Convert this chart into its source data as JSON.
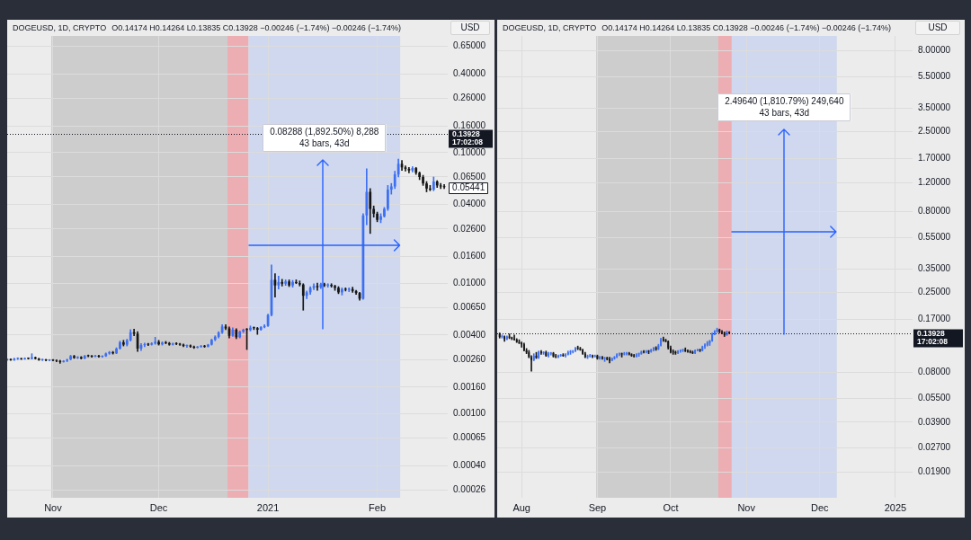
{
  "chart_data": [
    {
      "type": "candlestick",
      "title": "DOGEUSD, 1D, CRYPTO",
      "subtitle": "O0.14174 H0.14264 L0.13835 C0.13928 −0.00246 (−1.74%) −0.00246 (−1.74%)",
      "ylabel": "USD",
      "log": true,
      "grid": true,
      "xlim": [
        "2020-10-19",
        "2021-02-21"
      ],
      "xticks": [
        {
          "value": "2020-11-01",
          "label": "Nov"
        },
        {
          "value": "2020-12-01",
          "label": "Dec"
        },
        {
          "value": "2021-01-01",
          "label": "2021"
        },
        {
          "value": "2021-02-01",
          "label": "Feb"
        }
      ],
      "ylim": [
        0.000227,
        0.782
      ],
      "yticks": [
        {
          "value": 0.65,
          "label": "0.65000"
        },
        {
          "value": 0.4,
          "label": "0.40000"
        },
        {
          "value": 0.26,
          "label": "0.26000"
        },
        {
          "value": 0.16,
          "label": "0.16000"
        },
        {
          "value": 0.1,
          "label": "0.10000"
        },
        {
          "value": 0.065,
          "label": "0.06500"
        },
        {
          "value": 0.04,
          "label": "0.04000"
        },
        {
          "value": 0.026,
          "label": "0.02600"
        },
        {
          "value": 0.016,
          "label": "0.01600"
        },
        {
          "value": 0.01,
          "label": "0.01000"
        },
        {
          "value": 0.0065,
          "label": "0.00650"
        },
        {
          "value": 0.004,
          "label": "0.00400"
        },
        {
          "value": 0.0026,
          "label": "0.00260"
        },
        {
          "value": 0.0016,
          "label": "0.00160"
        },
        {
          "value": 0.001,
          "label": "0.00100"
        },
        {
          "value": 0.00065,
          "label": "0.00065"
        },
        {
          "value": 0.0004,
          "label": "0.00040"
        },
        {
          "value": 0.00026,
          "label": "0.00026"
        }
      ],
      "bands": [
        {
          "axis": "x",
          "from": "2020-10-31T12:00",
          "to": "2020-12-20T12:00",
          "color": "#cdcdcd"
        },
        {
          "axis": "x",
          "from": "2020-12-20T12:00",
          "to": "2020-12-26T12:00",
          "color": "#ecaeb3"
        },
        {
          "axis": "x",
          "from": "2020-12-26T12:00",
          "to": "2021-02-07T12:00",
          "color": "#cfd8ee"
        }
      ],
      "ref_lines": [
        {
          "axis": "y",
          "value": 0.13928,
          "label": "0.13928\n17:02:08",
          "line_style": "dotted",
          "color": "#131722"
        }
      ],
      "annotations": [
        "0.08288 (1,892.50%) 8,288",
        "43 bars, 43d",
        {
          "text": "0.05441",
          "x": "2021-02-20",
          "y": 0.05441
        }
      ],
      "x": [
        "2020-10-19",
        "2020-10-20",
        "2020-10-21",
        "2020-10-22",
        "2020-10-23",
        "2020-10-24",
        "2020-10-25",
        "2020-10-26",
        "2020-10-27",
        "2020-10-28",
        "2020-10-29",
        "2020-10-30",
        "2020-10-31",
        "2020-11-01",
        "2020-11-02",
        "2020-11-03",
        "2020-11-04",
        "2020-11-05",
        "2020-11-06",
        "2020-11-07",
        "2020-11-08",
        "2020-11-09",
        "2020-11-10",
        "2020-11-11",
        "2020-11-12",
        "2020-11-13",
        "2020-11-14",
        "2020-11-15",
        "2020-11-16",
        "2020-11-17",
        "2020-11-18",
        "2020-11-19",
        "2020-11-20",
        "2020-11-21",
        "2020-11-22",
        "2020-11-23",
        "2020-11-24",
        "2020-11-25",
        "2020-11-26",
        "2020-11-27",
        "2020-11-28",
        "2020-11-29",
        "2020-11-30",
        "2020-12-01",
        "2020-12-02",
        "2020-12-03",
        "2020-12-04",
        "2020-12-05",
        "2020-12-06",
        "2020-12-07",
        "2020-12-08",
        "2020-12-09",
        "2020-12-10",
        "2020-12-11",
        "2020-12-12",
        "2020-12-13",
        "2020-12-14",
        "2020-12-15",
        "2020-12-16",
        "2020-12-17",
        "2020-12-18",
        "2020-12-19",
        "2020-12-20",
        "2020-12-21",
        "2020-12-22",
        "2020-12-23",
        "2020-12-24",
        "2020-12-25",
        "2020-12-26",
        "2020-12-27",
        "2020-12-28",
        "2020-12-29",
        "2020-12-30",
        "2020-12-31",
        "2021-01-01",
        "2021-01-02",
        "2021-01-03",
        "2021-01-04",
        "2021-01-05",
        "2021-01-06",
        "2021-01-07",
        "2021-01-08",
        "2021-01-09",
        "2021-01-10",
        "2021-01-11",
        "2021-01-12",
        "2021-01-13",
        "2021-01-14",
        "2021-01-15",
        "2021-01-16",
        "2021-01-17",
        "2021-01-18",
        "2021-01-19",
        "2021-01-20",
        "2021-01-21",
        "2021-01-22",
        "2021-01-23",
        "2021-01-24",
        "2021-01-25",
        "2021-01-26",
        "2021-01-27",
        "2021-01-28",
        "2021-01-29",
        "2021-01-30",
        "2021-01-31",
        "2021-02-01",
        "2021-02-02",
        "2021-02-03",
        "2021-02-04",
        "2021-02-05",
        "2021-02-06",
        "2021-02-07",
        "2021-02-08",
        "2021-02-09",
        "2021-02-10",
        "2021-02-11",
        "2021-02-12",
        "2021-02-13",
        "2021-02-14",
        "2021-02-15",
        "2021-02-16",
        "2021-02-17",
        "2021-02-18",
        "2021-02-19",
        "2021-02-20"
      ],
      "ohlc": [
        [
          0.00258,
          0.00263,
          0.00256,
          0.00261
        ],
        [
          0.00261,
          0.00263,
          0.00256,
          0.00258
        ],
        [
          0.00258,
          0.00266,
          0.00256,
          0.00263
        ],
        [
          0.00263,
          0.00268,
          0.0026,
          0.00264
        ],
        [
          0.00264,
          0.00266,
          0.0026,
          0.00262
        ],
        [
          0.00262,
          0.00268,
          0.00261,
          0.00266
        ],
        [
          0.00266,
          0.00268,
          0.00262,
          0.00264
        ],
        [
          0.00264,
          0.00288,
          0.00262,
          0.0027
        ],
        [
          0.0027,
          0.00272,
          0.00262,
          0.00264
        ],
        [
          0.00264,
          0.00266,
          0.00256,
          0.00258
        ],
        [
          0.00258,
          0.00262,
          0.00255,
          0.00259
        ],
        [
          0.00259,
          0.00261,
          0.00254,
          0.00256
        ],
        [
          0.00256,
          0.0026,
          0.00254,
          0.00258
        ],
        [
          0.00258,
          0.0026,
          0.00254,
          0.00256
        ],
        [
          0.00256,
          0.00258,
          0.0025,
          0.00254
        ],
        [
          0.00254,
          0.00257,
          0.00243,
          0.00249
        ],
        [
          0.00249,
          0.00256,
          0.00248,
          0.00254
        ],
        [
          0.00254,
          0.00262,
          0.0025,
          0.0026
        ],
        [
          0.0026,
          0.0028,
          0.00258,
          0.00276
        ],
        [
          0.00276,
          0.0028,
          0.00265,
          0.00268
        ],
        [
          0.00268,
          0.00274,
          0.00264,
          0.00271
        ],
        [
          0.00271,
          0.00274,
          0.00262,
          0.00265
        ],
        [
          0.00265,
          0.0028,
          0.00263,
          0.00277
        ],
        [
          0.00277,
          0.00282,
          0.00272,
          0.00276
        ],
        [
          0.00276,
          0.00279,
          0.0027,
          0.00274
        ],
        [
          0.00274,
          0.0028,
          0.00272,
          0.00278
        ],
        [
          0.00278,
          0.0028,
          0.0027,
          0.00273
        ],
        [
          0.00273,
          0.00278,
          0.0027,
          0.00276
        ],
        [
          0.00276,
          0.00292,
          0.00274,
          0.00289
        ],
        [
          0.00289,
          0.003,
          0.00285,
          0.00296
        ],
        [
          0.00296,
          0.003,
          0.00286,
          0.0029
        ],
        [
          0.0029,
          0.0032,
          0.00288,
          0.00315
        ],
        [
          0.00315,
          0.0036,
          0.00312,
          0.00352
        ],
        [
          0.00352,
          0.00365,
          0.0033,
          0.00338
        ],
        [
          0.00338,
          0.00372,
          0.0033,
          0.00365
        ],
        [
          0.00365,
          0.0044,
          0.0036,
          0.0042
        ],
        [
          0.0042,
          0.00445,
          0.00395,
          0.0041
        ],
        [
          0.0041,
          0.00425,
          0.003,
          0.00315
        ],
        [
          0.00315,
          0.00345,
          0.00305,
          0.00335
        ],
        [
          0.00335,
          0.00348,
          0.00325,
          0.0034
        ],
        [
          0.0034,
          0.00346,
          0.00332,
          0.00338
        ],
        [
          0.00338,
          0.0035,
          0.00335,
          0.00345
        ],
        [
          0.00345,
          0.00385,
          0.0034,
          0.00355
        ],
        [
          0.00355,
          0.00365,
          0.00335,
          0.0034
        ],
        [
          0.0034,
          0.00355,
          0.00335,
          0.0035
        ],
        [
          0.0035,
          0.00358,
          0.00343,
          0.00347
        ],
        [
          0.00347,
          0.00352,
          0.00334,
          0.00338
        ],
        [
          0.00338,
          0.00348,
          0.00335,
          0.00344
        ],
        [
          0.00344,
          0.0035,
          0.00338,
          0.00342
        ],
        [
          0.00342,
          0.00346,
          0.00334,
          0.00338
        ],
        [
          0.00338,
          0.00342,
          0.00326,
          0.0033
        ],
        [
          0.0033,
          0.00336,
          0.00322,
          0.00333
        ],
        [
          0.00333,
          0.00336,
          0.00322,
          0.00326
        ],
        [
          0.00326,
          0.0033,
          0.00316,
          0.0032
        ],
        [
          0.0032,
          0.00328,
          0.00318,
          0.00326
        ],
        [
          0.00326,
          0.00333,
          0.00322,
          0.0033
        ],
        [
          0.0033,
          0.00334,
          0.00322,
          0.00326
        ],
        [
          0.00326,
          0.0034,
          0.00324,
          0.00338
        ],
        [
          0.00338,
          0.00372,
          0.00335,
          0.00368
        ],
        [
          0.00368,
          0.00395,
          0.00362,
          0.00388
        ],
        [
          0.00388,
          0.00425,
          0.0038,
          0.00418
        ],
        [
          0.00418,
          0.0048,
          0.00412,
          0.00465
        ],
        [
          0.00465,
          0.0048,
          0.0044,
          0.0045
        ],
        [
          0.0045,
          0.00462,
          0.0038,
          0.00395
        ],
        [
          0.00395,
          0.00455,
          0.0039,
          0.0044
        ],
        [
          0.0044,
          0.00448,
          0.00375,
          0.00385
        ],
        [
          0.00385,
          0.0043,
          0.0038,
          0.00425
        ],
        [
          0.00425,
          0.00445,
          0.00418,
          0.0044
        ],
        [
          0.0044,
          0.0045,
          0.0031,
          0.00438
        ],
        [
          0.00438,
          0.0047,
          0.0043,
          0.00455
        ],
        [
          0.00455,
          0.00462,
          0.0044,
          0.00452
        ],
        [
          0.00452,
          0.00458,
          0.00405,
          0.0044
        ],
        [
          0.0044,
          0.00465,
          0.00435,
          0.0046
        ],
        [
          0.0046,
          0.0048,
          0.00455,
          0.0047
        ],
        [
          0.0047,
          0.0058,
          0.00465,
          0.0057
        ],
        [
          0.0057,
          0.0138,
          0.0056,
          0.0106
        ],
        [
          0.0106,
          0.0118,
          0.0078,
          0.0096
        ],
        [
          0.0096,
          0.0113,
          0.009,
          0.0102
        ],
        [
          0.0102,
          0.0107,
          0.0095,
          0.0099
        ],
        [
          0.0099,
          0.0106,
          0.0096,
          0.0103
        ],
        [
          0.0103,
          0.0106,
          0.0094,
          0.0096
        ],
        [
          0.0096,
          0.0105,
          0.0093,
          0.0102
        ],
        [
          0.0102,
          0.0106,
          0.0099,
          0.01
        ],
        [
          0.01,
          0.0104,
          0.0095,
          0.00975
        ],
        [
          0.00975,
          0.0099,
          0.0062,
          0.008
        ],
        [
          0.008,
          0.0087,
          0.0076,
          0.0085
        ],
        [
          0.0085,
          0.0094,
          0.0082,
          0.0092
        ],
        [
          0.0092,
          0.0099,
          0.0089,
          0.0095
        ],
        [
          0.0095,
          0.01,
          0.0088,
          0.0093
        ],
        [
          0.0093,
          0.01,
          0.0091,
          0.0098
        ],
        [
          0.0098,
          0.01,
          0.0094,
          0.0096
        ],
        [
          0.0096,
          0.0099,
          0.0093,
          0.0097
        ],
        [
          0.0097,
          0.0099,
          0.0093,
          0.0095
        ],
        [
          0.0095,
          0.00965,
          0.0088,
          0.0092
        ],
        [
          0.0092,
          0.0094,
          0.0083,
          0.0085
        ],
        [
          0.0085,
          0.0092,
          0.0081,
          0.009
        ],
        [
          0.009,
          0.0092,
          0.0087,
          0.0089
        ],
        [
          0.0089,
          0.0092,
          0.0086,
          0.009
        ],
        [
          0.009,
          0.0093,
          0.0085,
          0.0087
        ],
        [
          0.0087,
          0.0088,
          0.0082,
          0.0084
        ],
        [
          0.0084,
          0.0085,
          0.0074,
          0.0076
        ],
        [
          0.0076,
          0.034,
          0.0075,
          0.033
        ],
        [
          0.033,
          0.075,
          0.028,
          0.05
        ],
        [
          0.05,
          0.053,
          0.024,
          0.037
        ],
        [
          0.037,
          0.039,
          0.032,
          0.034
        ],
        [
          0.034,
          0.035,
          0.0295,
          0.0305
        ],
        [
          0.0305,
          0.034,
          0.029,
          0.0325
        ],
        [
          0.0325,
          0.038,
          0.032,
          0.037
        ],
        [
          0.037,
          0.056,
          0.036,
          0.052
        ],
        [
          0.052,
          0.058,
          0.048,
          0.055
        ],
        [
          0.055,
          0.072,
          0.053,
          0.068
        ],
        [
          0.068,
          0.089,
          0.065,
          0.082
        ],
        [
          0.082,
          0.087,
          0.073,
          0.077
        ],
        [
          0.077,
          0.079,
          0.072,
          0.075
        ],
        [
          0.075,
          0.077,
          0.07,
          0.073
        ],
        [
          0.073,
          0.078,
          0.071,
          0.076
        ],
        [
          0.076,
          0.077,
          0.068,
          0.07
        ],
        [
          0.07,
          0.071,
          0.062,
          0.065
        ],
        [
          0.065,
          0.067,
          0.056,
          0.058
        ],
        [
          0.058,
          0.06,
          0.05,
          0.053
        ],
        [
          0.053,
          0.056,
          0.051,
          0.052
        ],
        [
          0.052,
          0.065,
          0.051,
          0.06
        ],
        [
          0.06,
          0.061,
          0.054,
          0.056
        ],
        [
          0.056,
          0.058,
          0.053,
          0.055
        ],
        [
          0.055,
          0.057,
          0.053,
          0.05441
        ]
      ],
      "colors": [
        "#3d6ff0",
        "#161616",
        "#3d6ff0",
        "#3d6ff0",
        "#161616",
        "#3d6ff0",
        "#161616",
        "#3d6ff0",
        "#161616",
        "#161616",
        "#3d6ff0",
        "#161616",
        "#3d6ff0",
        "#161616",
        "#161616",
        "#161616",
        "#3d6ff0",
        "#3d6ff0",
        "#3d6ff0",
        "#161616",
        "#3d6ff0",
        "#161616",
        "#3d6ff0",
        "#161616",
        "#161616",
        "#3d6ff0",
        "#161616",
        "#3d6ff0",
        "#3d6ff0",
        "#3d6ff0",
        "#161616",
        "#3d6ff0",
        "#3d6ff0",
        "#161616",
        "#3d6ff0",
        "#3d6ff0",
        "#161616",
        "#161616",
        "#3d6ff0",
        "#3d6ff0",
        "#161616",
        "#3d6ff0",
        "#3d6ff0",
        "#161616",
        "#3d6ff0",
        "#161616",
        "#161616",
        "#3d6ff0",
        "#161616",
        "#161616",
        "#161616",
        "#3d6ff0",
        "#161616",
        "#161616",
        "#3d6ff0",
        "#3d6ff0",
        "#161616",
        "#3d6ff0",
        "#3d6ff0",
        "#3d6ff0",
        "#3d6ff0",
        "#3d6ff0",
        "#161616",
        "#161616",
        "#3d6ff0",
        "#161616",
        "#3d6ff0",
        "#3d6ff0",
        "#161616",
        "#3d6ff0",
        "#161616",
        "#161616",
        "#3d6ff0",
        "#3d6ff0",
        "#3d6ff0",
        "#3d6ff0",
        "#161616",
        "#3d6ff0",
        "#161616",
        "#3d6ff0",
        "#161616",
        "#3d6ff0",
        "#161616",
        "#161616",
        "#161616",
        "#3d6ff0",
        "#3d6ff0",
        "#3d6ff0",
        "#161616",
        "#3d6ff0",
        "#161616",
        "#3d6ff0",
        "#161616",
        "#161616",
        "#161616",
        "#3d6ff0",
        "#161616",
        "#3d6ff0",
        "#161616",
        "#161616",
        "#161616",
        "#3d6ff0",
        "#3d6ff0",
        "#161616",
        "#161616",
        "#161616",
        "#3d6ff0",
        "#3d6ff0",
        "#3d6ff0",
        "#3d6ff0",
        "#3d6ff0",
        "#3d6ff0",
        "#161616",
        "#161616",
        "#161616",
        "#3d6ff0",
        "#161616",
        "#161616",
        "#161616",
        "#161616",
        "#161616",
        "#3d6ff0",
        "#161616",
        "#161616",
        "#161616"
      ]
    },
    {
      "type": "candlestick",
      "title": "DOGEUSD, 1D, CRYPTO",
      "subtitle": "O0.14174 H0.14264 L0.13835 C0.13928 −0.00246 (−1.74%) −0.00246 (−1.74%)",
      "ylabel": "USD",
      "log": true,
      "grid": true,
      "xlim": [
        "2024-07-22",
        "2025-01-08"
      ],
      "xticks": [
        {
          "value": "2024-08-01",
          "label": "Aug"
        },
        {
          "value": "2024-09-01",
          "label": "Sep"
        },
        {
          "value": "2024-10-01",
          "label": "Oct"
        },
        {
          "value": "2024-11-01",
          "label": "Nov"
        },
        {
          "value": "2024-12-01",
          "label": "Dec"
        },
        {
          "value": "2025-01-01",
          "label": "2025"
        }
      ],
      "ylim": [
        0.0132,
        9.86
      ],
      "yticks": [
        {
          "value": 8,
          "label": "8.00000"
        },
        {
          "value": 5.5,
          "label": "5.50000"
        },
        {
          "value": 3.5,
          "label": "3.50000"
        },
        {
          "value": 2.5,
          "label": "2.50000"
        },
        {
          "value": 1.7,
          "label": "1.70000"
        },
        {
          "value": 1.2,
          "label": "1.20000"
        },
        {
          "value": 0.8,
          "label": "0.80000"
        },
        {
          "value": 0.55,
          "label": "0.55000"
        },
        {
          "value": 0.35,
          "label": "0.35000"
        },
        {
          "value": 0.25,
          "label": "0.25000"
        },
        {
          "value": 0.17,
          "label": "0.17000"
        },
        {
          "value": 0.08,
          "label": "0.08000"
        },
        {
          "value": 0.055,
          "label": "0.05500"
        },
        {
          "value": 0.039,
          "label": "0.03900"
        },
        {
          "value": 0.027,
          "label": "0.02700"
        },
        {
          "value": 0.019,
          "label": "0.01900"
        }
      ],
      "bands": [
        {
          "axis": "x",
          "from": "2024-08-31T12:00",
          "to": "2024-10-20T12:00",
          "color": "#cdcdcd"
        },
        {
          "axis": "x",
          "from": "2024-10-20T12:00",
          "to": "2024-10-26",
          "color": "#ecaeb3"
        },
        {
          "axis": "x",
          "from": "2024-10-26",
          "to": "2024-12-08",
          "color": "#cfd8ee"
        }
      ],
      "ref_lines": [
        {
          "axis": "y",
          "value": 0.13928,
          "label": "0.13928\n17:02:08",
          "line_style": "dotted",
          "color": "#131722"
        }
      ],
      "annotations": [
        "2.49640 (1,810.79%) 249,640",
        "43 bars, 43d"
      ],
      "x": [
        "2024-07-23",
        "2024-07-24",
        "2024-07-25",
        "2024-07-26",
        "2024-07-27",
        "2024-07-28",
        "2024-07-29",
        "2024-07-30",
        "2024-07-31",
        "2024-08-01",
        "2024-08-02",
        "2024-08-03",
        "2024-08-04",
        "2024-08-05",
        "2024-08-06",
        "2024-08-07",
        "2024-08-08",
        "2024-08-09",
        "2024-08-10",
        "2024-08-11",
        "2024-08-12",
        "2024-08-13",
        "2024-08-14",
        "2024-08-15",
        "2024-08-16",
        "2024-08-17",
        "2024-08-18",
        "2024-08-19",
        "2024-08-20",
        "2024-08-21",
        "2024-08-22",
        "2024-08-23",
        "2024-08-24",
        "2024-08-25",
        "2024-08-26",
        "2024-08-27",
        "2024-08-28",
        "2024-08-29",
        "2024-08-30",
        "2024-08-31",
        "2024-09-01",
        "2024-09-02",
        "2024-09-03",
        "2024-09-04",
        "2024-09-05",
        "2024-09-06",
        "2024-09-07",
        "2024-09-08",
        "2024-09-09",
        "2024-09-10",
        "2024-09-11",
        "2024-09-12",
        "2024-09-13",
        "2024-09-14",
        "2024-09-15",
        "2024-09-16",
        "2024-09-17",
        "2024-09-18",
        "2024-09-19",
        "2024-09-20",
        "2024-09-21",
        "2024-09-22",
        "2024-09-23",
        "2024-09-24",
        "2024-09-25",
        "2024-09-26",
        "2024-09-27",
        "2024-09-28",
        "2024-09-29",
        "2024-09-30",
        "2024-10-01",
        "2024-10-02",
        "2024-10-03",
        "2024-10-04",
        "2024-10-05",
        "2024-10-06",
        "2024-10-07",
        "2024-10-08",
        "2024-10-09",
        "2024-10-10",
        "2024-10-11",
        "2024-10-12",
        "2024-10-13",
        "2024-10-14",
        "2024-10-15",
        "2024-10-16",
        "2024-10-17",
        "2024-10-18",
        "2024-10-19",
        "2024-10-20",
        "2024-10-21",
        "2024-10-22",
        "2024-10-23",
        "2024-10-24",
        "2024-10-25"
      ],
      "ohlc": [
        [
          0.138,
          0.14,
          0.13,
          0.132
        ],
        [
          0.132,
          0.136,
          0.13,
          0.133
        ],
        [
          0.133,
          0.134,
          0.124,
          0.128
        ],
        [
          0.128,
          0.134,
          0.127,
          0.133
        ],
        [
          0.133,
          0.138,
          0.129,
          0.131
        ],
        [
          0.131,
          0.132,
          0.127,
          0.129
        ],
        [
          0.129,
          0.136,
          0.126,
          0.127
        ],
        [
          0.127,
          0.129,
          0.122,
          0.123
        ],
        [
          0.123,
          0.127,
          0.12,
          0.121
        ],
        [
          0.121,
          0.123,
          0.114,
          0.119
        ],
        [
          0.119,
          0.121,
          0.108,
          0.109
        ],
        [
          0.109,
          0.112,
          0.104,
          0.106
        ],
        [
          0.106,
          0.109,
          0.098,
          0.099
        ],
        [
          0.099,
          0.101,
          0.081,
          0.095
        ],
        [
          0.095,
          0.104,
          0.094,
          0.101
        ],
        [
          0.101,
          0.106,
          0.097,
          0.098
        ],
        [
          0.098,
          0.108,
          0.097,
          0.107
        ],
        [
          0.107,
          0.109,
          0.103,
          0.105
        ],
        [
          0.105,
          0.107,
          0.103,
          0.106
        ],
        [
          0.106,
          0.108,
          0.1,
          0.101
        ],
        [
          0.101,
          0.106,
          0.099,
          0.104
        ],
        [
          0.104,
          0.106,
          0.102,
          0.105
        ],
        [
          0.105,
          0.106,
          0.099,
          0.1
        ],
        [
          0.1,
          0.103,
          0.098,
          0.099
        ],
        [
          0.099,
          0.102,
          0.098,
          0.101
        ],
        [
          0.101,
          0.103,
          0.1,
          0.102
        ],
        [
          0.102,
          0.104,
          0.1,
          0.101
        ],
        [
          0.101,
          0.104,
          0.099,
          0.103
        ],
        [
          0.103,
          0.108,
          0.102,
          0.106
        ],
        [
          0.106,
          0.109,
          0.103,
          0.107
        ],
        [
          0.107,
          0.109,
          0.105,
          0.108
        ],
        [
          0.108,
          0.114,
          0.107,
          0.113
        ],
        [
          0.113,
          0.116,
          0.11,
          0.112
        ],
        [
          0.112,
          0.114,
          0.109,
          0.11
        ],
        [
          0.11,
          0.111,
          0.103,
          0.104
        ],
        [
          0.104,
          0.106,
          0.098,
          0.099
        ],
        [
          0.099,
          0.102,
          0.097,
          0.1
        ],
        [
          0.1,
          0.103,
          0.099,
          0.101
        ],
        [
          0.101,
          0.102,
          0.098,
          0.1
        ],
        [
          0.1,
          0.102,
          0.099,
          0.101
        ],
        [
          0.101,
          0.102,
          0.096,
          0.097
        ],
        [
          0.097,
          0.1,
          0.096,
          0.099
        ],
        [
          0.099,
          0.1,
          0.096,
          0.097
        ],
        [
          0.097,
          0.099,
          0.093,
          0.098
        ],
        [
          0.098,
          0.099,
          0.095,
          0.096
        ],
        [
          0.096,
          0.099,
          0.091,
          0.094
        ],
        [
          0.094,
          0.098,
          0.094,
          0.097
        ],
        [
          0.097,
          0.1,
          0.096,
          0.099
        ],
        [
          0.099,
          0.104,
          0.098,
          0.103
        ],
        [
          0.103,
          0.105,
          0.101,
          0.104
        ],
        [
          0.104,
          0.105,
          0.099,
          0.103
        ],
        [
          0.103,
          0.106,
          0.102,
          0.104
        ],
        [
          0.104,
          0.106,
          0.102,
          0.105
        ],
        [
          0.105,
          0.106,
          0.102,
          0.103
        ],
        [
          0.103,
          0.104,
          0.1,
          0.101
        ],
        [
          0.101,
          0.103,
          0.099,
          0.1
        ],
        [
          0.1,
          0.104,
          0.099,
          0.103
        ],
        [
          0.103,
          0.105,
          0.1,
          0.104
        ],
        [
          0.104,
          0.108,
          0.103,
          0.107
        ],
        [
          0.107,
          0.109,
          0.105,
          0.106
        ],
        [
          0.106,
          0.109,
          0.105,
          0.108
        ],
        [
          0.108,
          0.109,
          0.104,
          0.107
        ],
        [
          0.107,
          0.111,
          0.106,
          0.11
        ],
        [
          0.11,
          0.114,
          0.108,
          0.113
        ],
        [
          0.113,
          0.115,
          0.109,
          0.111
        ],
        [
          0.111,
          0.119,
          0.11,
          0.117
        ],
        [
          0.117,
          0.13,
          0.116,
          0.128
        ],
        [
          0.128,
          0.132,
          0.124,
          0.126
        ],
        [
          0.126,
          0.128,
          0.123,
          0.124
        ],
        [
          0.124,
          0.125,
          0.111,
          0.113
        ],
        [
          0.113,
          0.116,
          0.105,
          0.107
        ],
        [
          0.107,
          0.11,
          0.103,
          0.106
        ],
        [
          0.106,
          0.108,
          0.103,
          0.105
        ],
        [
          0.105,
          0.109,
          0.104,
          0.108
        ],
        [
          0.108,
          0.11,
          0.106,
          0.109
        ],
        [
          0.109,
          0.111,
          0.107,
          0.11
        ],
        [
          0.11,
          0.113,
          0.107,
          0.108
        ],
        [
          0.108,
          0.11,
          0.106,
          0.107
        ],
        [
          0.107,
          0.109,
          0.105,
          0.106
        ],
        [
          0.106,
          0.108,
          0.104,
          0.105
        ],
        [
          0.105,
          0.11,
          0.104,
          0.109
        ],
        [
          0.109,
          0.111,
          0.108,
          0.11
        ],
        [
          0.11,
          0.111,
          0.107,
          0.109
        ],
        [
          0.109,
          0.116,
          0.108,
          0.115
        ],
        [
          0.115,
          0.12,
          0.112,
          0.118
        ],
        [
          0.118,
          0.124,
          0.116,
          0.121
        ],
        [
          0.121,
          0.126,
          0.117,
          0.125
        ],
        [
          0.125,
          0.14,
          0.124,
          0.138
        ],
        [
          0.138,
          0.145,
          0.136,
          0.143
        ],
        [
          0.143,
          0.15,
          0.141,
          0.147
        ],
        [
          0.147,
          0.148,
          0.14,
          0.142
        ],
        [
          0.142,
          0.145,
          0.138,
          0.14
        ],
        [
          0.14,
          0.142,
          0.133,
          0.136
        ],
        [
          0.136,
          0.144,
          0.135,
          0.142
        ],
        [
          0.14174,
          0.14264,
          0.13835,
          0.13928
        ]
      ],
      "colors": [
        "#161616",
        "#3d6ff0",
        "#161616",
        "#3d6ff0",
        "#161616",
        "#161616",
        "#161616",
        "#161616",
        "#161616",
        "#161616",
        "#161616",
        "#161616",
        "#161616",
        "#161616",
        "#3d6ff0",
        "#161616",
        "#3d6ff0",
        "#161616",
        "#3d6ff0",
        "#161616",
        "#3d6ff0",
        "#3d6ff0",
        "#161616",
        "#161616",
        "#3d6ff0",
        "#3d6ff0",
        "#161616",
        "#3d6ff0",
        "#3d6ff0",
        "#3d6ff0",
        "#3d6ff0",
        "#3d6ff0",
        "#161616",
        "#161616",
        "#161616",
        "#161616",
        "#3d6ff0",
        "#3d6ff0",
        "#161616",
        "#3d6ff0",
        "#161616",
        "#3d6ff0",
        "#161616",
        "#3d6ff0",
        "#161616",
        "#161616",
        "#3d6ff0",
        "#3d6ff0",
        "#3d6ff0",
        "#3d6ff0",
        "#161616",
        "#3d6ff0",
        "#3d6ff0",
        "#161616",
        "#161616",
        "#161616",
        "#3d6ff0",
        "#3d6ff0",
        "#3d6ff0",
        "#161616",
        "#3d6ff0",
        "#161616",
        "#3d6ff0",
        "#3d6ff0",
        "#161616",
        "#3d6ff0",
        "#3d6ff0",
        "#161616",
        "#161616",
        "#161616",
        "#161616",
        "#161616",
        "#161616",
        "#3d6ff0",
        "#3d6ff0",
        "#3d6ff0",
        "#161616",
        "#161616",
        "#161616",
        "#161616",
        "#3d6ff0",
        "#3d6ff0",
        "#161616",
        "#3d6ff0",
        "#3d6ff0",
        "#3d6ff0",
        "#3d6ff0",
        "#3d6ff0",
        "#3d6ff0",
        "#3d6ff0",
        "#161616",
        "#161616",
        "#161616",
        "#3d6ff0",
        "#161616"
      ]
    }
  ]
}
